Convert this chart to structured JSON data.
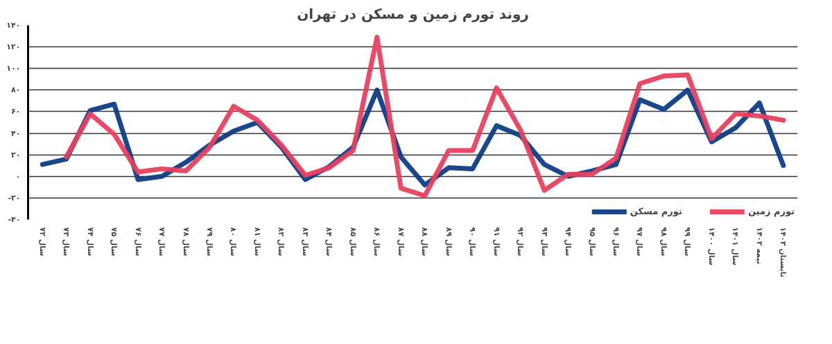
{
  "chart_data": {
    "type": "line",
    "title": "روند تورم زمین و مسکن در تهران",
    "categories": [
      "سال ۷۲",
      "سال ۷۳",
      "سال ۷۴",
      "سال ۷۵",
      "سال ۷۶",
      "سال ۷۷",
      "سال ۷۸",
      "سال ۷۹",
      "سال ۸۰",
      "سال ۸۱",
      "سال ۸۲",
      "سال ۸۳",
      "سال ۸۴",
      "سال ۸۵",
      "سال ۸۶",
      "سال ۸۷",
      "سال ۸۸",
      "سال ۸۹",
      "سال ۹۰",
      "سال ۹۱",
      "سال ۹۲",
      "سال ۹۳",
      "سال ۹۴",
      "سال ۹۵",
      "سال ۹۶",
      "سال ۹۷",
      "سال ۹۸",
      "سال ۹۹",
      "سال ۱۴۰۰",
      "سال ۱۴۰۱",
      "نیمه ۱۴۰۲",
      "تابستان ۱۴۰۳"
    ],
    "series": [
      {
        "name": "تورم مسکن",
        "color": "#0e3d86",
        "values": [
          11,
          16,
          61,
          67,
          -3,
          0,
          13,
          29,
          42,
          50,
          27,
          -3,
          9,
          27,
          80,
          18,
          -8,
          8,
          7,
          47,
          38,
          11,
          0,
          5,
          11,
          71,
          62,
          80,
          32,
          45,
          68,
          10
        ]
      },
      {
        "name": "تورم زمین",
        "color": "#e8405f",
        "values": [
          null,
          18,
          58,
          39,
          4,
          7,
          5,
          27,
          65,
          52,
          29,
          1,
          8,
          24,
          129,
          -11,
          -18,
          24,
          24,
          82,
          43,
          -13,
          2,
          2,
          17,
          86,
          93,
          94,
          35,
          58,
          56,
          52
        ]
      }
    ],
    "ylim": [
      -40,
      140
    ],
    "yticks": [
      {
        "value": -40,
        "label": "-۴۰"
      },
      {
        "value": -20,
        "label": "-۲۰"
      },
      {
        "value": 0,
        "label": "۰"
      },
      {
        "value": 20,
        "label": "۲۰"
      },
      {
        "value": 40,
        "label": "۴۰"
      },
      {
        "value": 60,
        "label": "۶۰"
      },
      {
        "value": 80,
        "label": "۸۰"
      },
      {
        "value": 100,
        "label": "۱۰۰"
      },
      {
        "value": 120,
        "label": "۱۲۰"
      },
      {
        "value": 140,
        "label": "۱۴۰"
      }
    ],
    "grid": "y",
    "legend": "bottom right",
    "marker": "none",
    "line_style": "solid"
  }
}
